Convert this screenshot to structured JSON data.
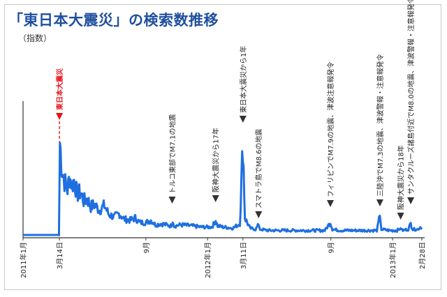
{
  "title": "「東日本大震災」の検索数推移",
  "subtitle": "（指数）",
  "colors": {
    "line": "#1f6fe0",
    "title": "#1f4f9e",
    "quake_marker": "#e8111a",
    "text": "#222222",
    "axis": "#333333"
  },
  "chart_data": {
    "type": "line",
    "title": "「東日本大震災」の検索数推移",
    "ylabel": "（指数）",
    "xlabel": "",
    "x_range": [
      "2011-01-01",
      "2013-02-28"
    ],
    "ylim": [
      0,
      100
    ],
    "grid": false,
    "x_ticks": [
      "2011年1月",
      "3月14日",
      "9月",
      "2012年1月",
      "3月11日",
      "9月",
      "2013年1月",
      "2月28日"
    ],
    "series": [
      {
        "name": "",
        "points": [
          [
            "2011-01-01",
            0
          ],
          [
            "2011-03-13",
            0
          ],
          [
            "2011-03-15",
            82
          ],
          [
            "2011-03-19",
            58
          ],
          [
            "2011-03-24",
            48
          ],
          [
            "2011-03-30",
            40
          ],
          [
            "2011-04-03",
            52
          ],
          [
            "2011-04-08",
            44
          ],
          [
            "2011-04-12",
            49
          ],
          [
            "2011-04-18",
            36
          ],
          [
            "2011-04-25",
            38
          ],
          [
            "2011-05-01",
            30
          ],
          [
            "2011-05-08",
            32
          ],
          [
            "2011-05-15",
            25
          ],
          [
            "2011-05-22",
            27
          ],
          [
            "2011-06-01",
            22
          ],
          [
            "2011-06-11",
            26
          ],
          [
            "2011-06-20",
            18
          ],
          [
            "2011-07-01",
            16
          ],
          [
            "2011-07-11",
            19
          ],
          [
            "2011-07-20",
            14
          ],
          [
            "2011-08-01",
            13
          ],
          [
            "2011-08-11",
            15
          ],
          [
            "2011-08-20",
            11
          ],
          [
            "2011-09-01",
            11
          ],
          [
            "2011-09-11",
            13
          ],
          [
            "2011-09-20",
            9
          ],
          [
            "2011-10-01",
            10
          ],
          [
            "2011-10-11",
            9
          ],
          [
            "2011-10-20",
            8
          ],
          [
            "2011-10-24",
            11
          ],
          [
            "2011-10-27",
            8
          ],
          [
            "2011-11-10",
            9
          ],
          [
            "2011-12-01",
            8
          ],
          [
            "2011-12-20",
            7
          ],
          [
            "2012-01-10",
            7
          ],
          [
            "2012-01-17",
            13
          ],
          [
            "2012-01-21",
            8
          ],
          [
            "2012-02-01",
            7
          ],
          [
            "2012-02-20",
            6
          ],
          [
            "2012-03-05",
            10
          ],
          [
            "2012-03-11",
            82
          ],
          [
            "2012-03-15",
            15
          ],
          [
            "2012-03-25",
            6
          ],
          [
            "2012-04-05",
            5
          ],
          [
            "2012-04-11",
            9
          ],
          [
            "2012-04-14",
            5
          ],
          [
            "2012-05-01",
            4
          ],
          [
            "2012-06-01",
            4
          ],
          [
            "2012-07-01",
            4
          ],
          [
            "2012-08-01",
            4
          ],
          [
            "2012-08-20",
            4
          ],
          [
            "2012-08-31",
            11
          ],
          [
            "2012-09-04",
            5
          ],
          [
            "2012-09-20",
            4
          ],
          [
            "2012-10-15",
            4
          ],
          [
            "2012-11-10",
            4
          ],
          [
            "2012-12-01",
            4
          ],
          [
            "2012-12-07",
            17
          ],
          [
            "2012-12-10",
            5
          ],
          [
            "2012-12-25",
            4
          ],
          [
            "2013-01-10",
            4
          ],
          [
            "2013-01-17",
            6
          ],
          [
            "2013-01-20",
            4
          ],
          [
            "2013-02-01",
            5
          ],
          [
            "2013-02-06",
            10
          ],
          [
            "2013-02-10",
            5
          ],
          [
            "2013-02-20",
            5
          ],
          [
            "2013-02-25",
            7
          ],
          [
            "2013-02-28",
            5
          ]
        ]
      }
    ],
    "events": [
      {
        "date": "2011-03-14",
        "label": "東日本大震災",
        "highlight": true
      },
      {
        "date": "2011-10-23",
        "label": "トルコ東部でM7.1の地震"
      },
      {
        "date": "2012-01-17",
        "label": "阪神大震災から17年"
      },
      {
        "date": "2012-03-11",
        "label": "東日本大震災から1年"
      },
      {
        "date": "2012-04-11",
        "label": "スマトラ島でM8.6の地震"
      },
      {
        "date": "2012-08-31",
        "label": "フィリピンでM7.9の地震、津波注意報発令"
      },
      {
        "date": "2012-12-07",
        "label": "三陸沖でM7.3の地震、津波警報・注意報発令"
      },
      {
        "date": "2013-01-17",
        "label": "阪神大震災から18年"
      },
      {
        "date": "2013-02-06",
        "label": "サンタクルーズ諸島付近でM8.0の地震、津波警報・注意報発令"
      }
    ]
  }
}
